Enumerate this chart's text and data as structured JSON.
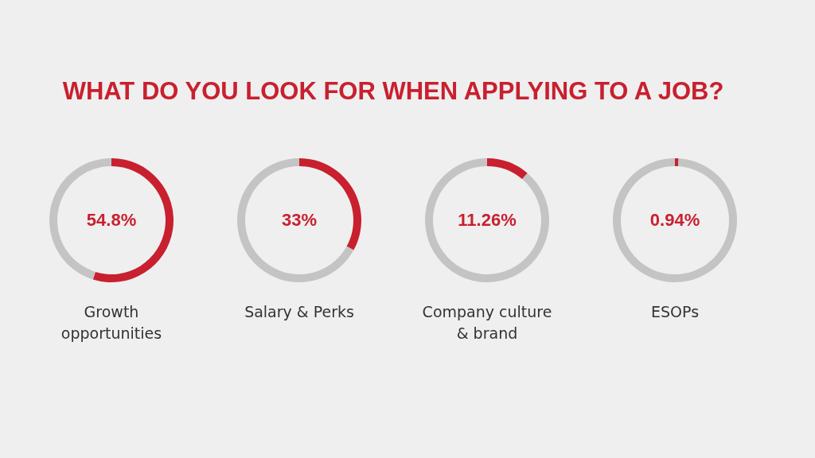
{
  "chart_data": [
    {
      "type": "donut",
      "title": "WHAT DO YOU LOOK FOR WHEN APPLYING TO A JOB?",
      "xlabel": "Growth opportunities",
      "categories": [
        null,
        null
      ],
      "values": [
        54.8,
        45.2
      ],
      "colors": [
        "#c8202f",
        "#c4c4c4"
      ],
      "value_labels": [
        "54.8%",
        null
      ]
    },
    {
      "type": "donut",
      "xlabel": "Salary & Perks",
      "categories": [
        null,
        null
      ],
      "values": [
        33,
        67
      ],
      "colors": [
        "#c8202f",
        "#c4c4c4"
      ],
      "value_labels": [
        "33%",
        null
      ]
    },
    {
      "type": "donut",
      "xlabel": "Company culture & brand",
      "categories": [
        null,
        null
      ],
      "values": [
        11.26,
        88.74
      ],
      "colors": [
        "#c8202f",
        "#c4c4c4"
      ],
      "value_labels": [
        "11.26%",
        null
      ]
    },
    {
      "type": "donut",
      "xlabel": "ESOPs",
      "categories": [
        null,
        null
      ],
      "values": [
        0.94,
        99.06
      ],
      "colors": [
        "#c8202f",
        "#c4c4c4"
      ],
      "value_labels": [
        "0.94%",
        null
      ]
    }
  ]
}
